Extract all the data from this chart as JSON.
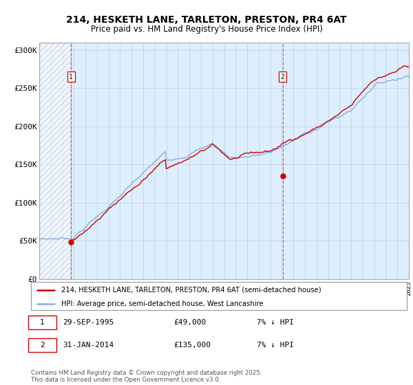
{
  "title1": "214, HESKETH LANE, TARLETON, PRESTON, PR4 6AT",
  "title2": "Price paid vs. HM Land Registry's House Price Index (HPI)",
  "ylim": [
    0,
    310000
  ],
  "yticks": [
    0,
    50000,
    100000,
    150000,
    200000,
    250000,
    300000
  ],
  "ytick_labels": [
    "£0",
    "£50K",
    "£100K",
    "£150K",
    "£200K",
    "£250K",
    "£300K"
  ],
  "x_start_year": 1993,
  "x_end_year": 2025,
  "sale1_date": 1995.75,
  "sale1_price": 49000,
  "sale1_label": "1",
  "sale2_date": 2014.08,
  "sale2_price": 135000,
  "sale2_label": "2",
  "legend_line1": "214, HESKETH LANE, TARLETON, PRESTON, PR4 6AT (semi-detached house)",
  "legend_line2": "HPI: Average price, semi-detached house, West Lancashire",
  "footer": "Contains HM Land Registry data © Crown copyright and database right 2025.\nThis data is licensed under the Open Government Licence v3.0.",
  "line_red": "#cc0000",
  "line_blue": "#88aadd",
  "bg_main": "#ddeeff",
  "grid_color": "#aabbcc"
}
